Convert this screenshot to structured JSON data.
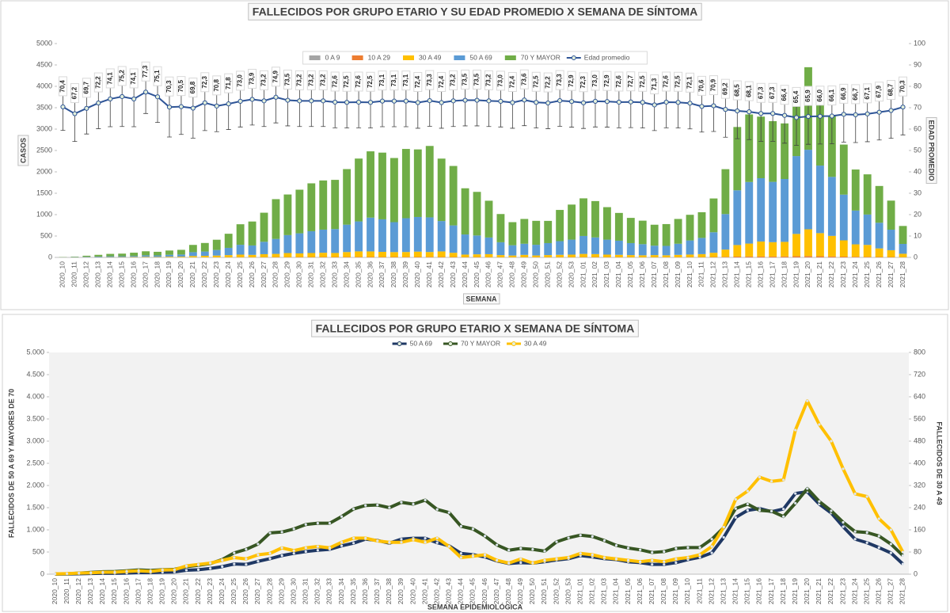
{
  "chart_data": [
    {
      "type": "bar",
      "stacked": true,
      "title": "FALLECIDOS POR GRUPO ETARIO Y SU EDAD PROMEDIO X SEMANA DE SÍNTOMA",
      "ylabel": "CASOS",
      "y2label": "EDAD PROMEDIO",
      "xlabel": "SEMANA",
      "categories": [
        "2020_10",
        "2020_11",
        "2020_12",
        "2020_13",
        "2020_14",
        "2020_15",
        "2020_16",
        "2020_17",
        "2020_18",
        "2020_19",
        "2020_20",
        "2020_21",
        "2020_22",
        "2020_23",
        "2020_24",
        "2020_25",
        "2020_26",
        "2020_27",
        "2020_28",
        "2020_29",
        "2020_30",
        "2020_31",
        "2020_32",
        "2020_33",
        "2020_34",
        "2020_35",
        "2020_36",
        "2020_37",
        "2020_38",
        "2020_39",
        "2020_40",
        "2020_41",
        "2020_42",
        "2020_43",
        "2020_44",
        "2020_45",
        "2020_46",
        "2020_47",
        "2020_48",
        "2020_49",
        "2020_50",
        "2020_51",
        "2020_52",
        "2020_53",
        "2021_01",
        "2021_02",
        "2021_03",
        "2021_04",
        "2021_05",
        "2021_06",
        "2021_07",
        "2021_08",
        "2021_09",
        "2021_10",
        "2021_11",
        "2021_12",
        "2021_13",
        "2021_14",
        "2021_15",
        "2021_16",
        "2021_17",
        "2021_18",
        "2021_19",
        "2021_20",
        "2021_21",
        "2021_22",
        "2021_23",
        "2021_24",
        "2021_25",
        "2021_26",
        "2021_27",
        "2021_28"
      ],
      "ylim": [
        0,
        5000
      ],
      "yticks": [
        0,
        500,
        1000,
        1500,
        2000,
        2500,
        3000,
        3500,
        4000,
        4500,
        5000
      ],
      "y2lim": [
        0,
        100
      ],
      "y2ticks": [
        0,
        10,
        20,
        30,
        40,
        50,
        60,
        70,
        80,
        90,
        100
      ],
      "series": [
        {
          "name": "0 A 9",
          "color": "#a5a5a5",
          "values": [
            0,
            0,
            0,
            0,
            0,
            0,
            0,
            0,
            0,
            0,
            0,
            0,
            0,
            0,
            0,
            1,
            0,
            0,
            1,
            0,
            1,
            0,
            1,
            0,
            1,
            1,
            0,
            1,
            0,
            1,
            0,
            1,
            1,
            0,
            0,
            1,
            0,
            0,
            0,
            0,
            1,
            0,
            0,
            0,
            0,
            1,
            0,
            0,
            0,
            0,
            0,
            0,
            0,
            1,
            0,
            0,
            1,
            1,
            1,
            0,
            1,
            1,
            1,
            2,
            1,
            1,
            0,
            1,
            0,
            0,
            0,
            0
          ]
        },
        {
          "name": "10 A 29",
          "color": "#ed7d31",
          "values": [
            0,
            0,
            0,
            0,
            0,
            1,
            0,
            1,
            1,
            1,
            1,
            2,
            2,
            3,
            3,
            4,
            4,
            5,
            6,
            6,
            7,
            7,
            8,
            8,
            9,
            10,
            10,
            9,
            9,
            10,
            10,
            10,
            9,
            8,
            6,
            6,
            5,
            4,
            4,
            4,
            4,
            4,
            5,
            5,
            6,
            6,
            5,
            5,
            4,
            4,
            4,
            4,
            4,
            5,
            6,
            8,
            12,
            18,
            22,
            22,
            20,
            22,
            28,
            30,
            26,
            22,
            18,
            14,
            12,
            10,
            8,
            5
          ]
        },
        {
          "name": "30 A 49",
          "color": "#ffc000",
          "values": [
            1,
            2,
            4,
            5,
            7,
            7,
            10,
            12,
            10,
            15,
            16,
            30,
            35,
            40,
            50,
            60,
            55,
            70,
            75,
            95,
            85,
            95,
            100,
            95,
            115,
            130,
            130,
            120,
            115,
            115,
            125,
            115,
            130,
            100,
            60,
            65,
            70,
            50,
            40,
            55,
            40,
            50,
            55,
            60,
            75,
            70,
            60,
            55,
            50,
            45,
            50,
            45,
            55,
            60,
            70,
            100,
            170,
            270,
            300,
            350,
            335,
            340,
            520,
            625,
            540,
            480,
            380,
            290,
            280,
            200,
            160,
            80
          ]
        },
        {
          "name": "50 A 69",
          "color": "#5b9bd5",
          "values": [
            2,
            5,
            10,
            15,
            20,
            20,
            25,
            35,
            35,
            45,
            50,
            90,
            100,
            130,
            170,
            230,
            220,
            290,
            350,
            420,
            470,
            510,
            540,
            560,
            640,
            700,
            790,
            760,
            700,
            790,
            810,
            810,
            710,
            640,
            470,
            440,
            390,
            300,
            240,
            260,
            250,
            280,
            320,
            350,
            420,
            390,
            350,
            330,
            280,
            260,
            220,
            220,
            260,
            330,
            380,
            480,
            830,
            1280,
            1440,
            1480,
            1410,
            1470,
            1820,
            1860,
            1580,
            1380,
            1070,
            790,
            710,
            600,
            480,
            230
          ]
        },
        {
          "name": "70 Y MAYOR",
          "color": "#70ad47",
          "values": [
            5,
            10,
            25,
            40,
            55,
            60,
            75,
            95,
            85,
            100,
            110,
            170,
            200,
            240,
            330,
            480,
            560,
            680,
            930,
            950,
            1020,
            1120,
            1150,
            1150,
            1300,
            1470,
            1550,
            1560,
            1500,
            1620,
            1580,
            1670,
            1460,
            1390,
            1080,
            1020,
            860,
            660,
            540,
            580,
            560,
            520,
            730,
            820,
            880,
            850,
            760,
            650,
            590,
            550,
            490,
            510,
            580,
            600,
            600,
            790,
            1050,
            1480,
            1580,
            1440,
            1420,
            1300,
            1600,
            1930,
            1640,
            1430,
            1170,
            960,
            940,
            860,
            680,
            420
          ]
        },
        {
          "name": "Edad promedio",
          "type": "line",
          "axis": "y2",
          "color": "#2f5597",
          "values": [
            70.4,
            67.2,
            69.7,
            72.2,
            74.1,
            75.2,
            74.1,
            77.3,
            75.1,
            70.3,
            70.5,
            69.8,
            72.3,
            70.8,
            71.8,
            73.0,
            73.9,
            73.2,
            74.9,
            73.5,
            73.2,
            73.2,
            73.2,
            72.6,
            72.5,
            72.6,
            72.5,
            73.1,
            73.1,
            73.1,
            72.4,
            73.3,
            72.4,
            73.2,
            73.5,
            73.5,
            73.2,
            73.0,
            72.4,
            73.6,
            72.5,
            72.2,
            73.3,
            72.9,
            72.3,
            73.0,
            72.9,
            72.6,
            72.7,
            72.5,
            71.3,
            72.6,
            72.5,
            72.1,
            70.6,
            70.9,
            69.2,
            68.5,
            68.1,
            67.3,
            67.3,
            66.4,
            65.4,
            65.9,
            66.0,
            66.1,
            66.9,
            66.7,
            67.1,
            67.9,
            68.7,
            70.3
          ],
          "value_labels": [
            "70,4",
            "67,2",
            "69,7",
            "72,2",
            "74,1",
            "75,2",
            "74,1",
            "77,3",
            "75,1",
            "70,3",
            "70,5",
            "69,8",
            "72,3",
            "70,8",
            "71,8",
            "73,0",
            "73,9",
            "73,2",
            "74,9",
            "73,5",
            "73,2",
            "73,2",
            "73,2",
            "72,6",
            "72,5",
            "72,6",
            "72,5",
            "73,1",
            "73,1",
            "73,1",
            "72,4",
            "73,3",
            "72,4",
            "73,2",
            "73,5",
            "73,5",
            "73,2",
            "73,0",
            "72,4",
            "73,6",
            "72,5",
            "72,2",
            "73,3",
            "72,9",
            "72,3",
            "73,0",
            "72,9",
            "72,6",
            "72,7",
            "72,5",
            "71,3",
            "72,6",
            "72,5",
            "72,1",
            "70,6",
            "70,9",
            "69,2",
            "68,5",
            "68,1",
            "67,3",
            "67,3",
            "66,4",
            "65,4",
            "65,9",
            "66,0",
            "66,1",
            "66,9",
            "66,7",
            "67,1",
            "67,9",
            "68,7",
            "70,3"
          ],
          "errors": [
            11,
            13,
            12,
            12,
            13,
            14,
            13,
            10,
            12,
            14,
            13,
            14,
            13,
            12,
            12,
            12,
            12,
            12,
            12,
            12,
            12,
            12,
            12,
            12,
            12,
            12,
            12,
            12,
            12,
            12,
            12,
            12,
            12,
            12,
            12,
            12,
            12,
            12,
            12,
            12,
            12,
            12,
            12,
            12,
            12,
            12,
            12,
            12,
            12,
            12,
            12,
            12,
            12,
            12,
            12,
            12,
            13,
            13,
            13,
            13,
            13,
            13,
            13,
            13,
            13,
            13,
            13,
            13,
            13,
            13,
            13,
            13
          ]
        }
      ]
    },
    {
      "type": "line",
      "title": "FALLECIDOS POR GRUPO ETARIO X SEMANA DE SÍNTOMA",
      "ylabel": "FALLECIDOS DE 50 A 69 Y MAYORES DE 70",
      "y2label": "FALLECIDOS DE 30 A 49",
      "xlabel": "SEMANA EPIDEMIOLÓGICA",
      "categories": [
        "2020_10",
        "2020_11",
        "2020_12",
        "2020_13",
        "2020_14",
        "2020_15",
        "2020_16",
        "2020_17",
        "2020_18",
        "2020_19",
        "2020_20",
        "2020_21",
        "2020_22",
        "2020_23",
        "2020_24",
        "2020_25",
        "2020_26",
        "2020_27",
        "2020_28",
        "2020_29",
        "2020_30",
        "2020_31",
        "2020_32",
        "2020_33",
        "2020_34",
        "2020_35",
        "2020_36",
        "2020_37",
        "2020_38",
        "2020_39",
        "2020_40",
        "2020_41",
        "2020_42",
        "2020_43",
        "2020_44",
        "2020_45",
        "2020_46",
        "2020_47",
        "2020_48",
        "2020_49",
        "2020_50",
        "2020_51",
        "2020_52",
        "2020_53",
        "2021_01",
        "2021_02",
        "2021_03",
        "2021_04",
        "2021_05",
        "2021_06",
        "2021_07",
        "2021_08",
        "2021_09",
        "2021_10",
        "2021_11",
        "2021_12",
        "2021_13",
        "2021_14",
        "2021_15",
        "2021_16",
        "2021_17",
        "2021_18",
        "2021_19",
        "2021_20",
        "2021_21",
        "2021_22",
        "2021_23",
        "2021_24",
        "2021_25",
        "2021_26",
        "2021_27",
        "2021_28"
      ],
      "ylim": [
        0,
        5000
      ],
      "yticks": [
        0,
        500,
        {
          "value": 1000,
          "label": "1.000"
        },
        {
          "value": 1500,
          "label": "1.500"
        },
        {
          "value": 2000,
          "label": "2.000"
        },
        {
          "value": 2500,
          "label": "2.500"
        },
        {
          "value": 3000,
          "label": "3.000"
        },
        {
          "value": 3500,
          "label": "3.500"
        },
        {
          "value": 4000,
          "label": "4.000"
        },
        {
          "value": 4500,
          "label": "4.500"
        },
        {
          "value": 5000,
          "label": "5.000"
        }
      ],
      "y2lim": [
        0,
        800
      ],
      "y2ticks": [
        0,
        80,
        160,
        240,
        320,
        400,
        480,
        560,
        640,
        720,
        800
      ],
      "series": [
        {
          "name": "50 A 69",
          "color": "#1f3864",
          "values": [
            2,
            5,
            10,
            15,
            20,
            20,
            25,
            35,
            35,
            45,
            50,
            90,
            100,
            130,
            170,
            230,
            220,
            290,
            350,
            420,
            470,
            510,
            540,
            560,
            640,
            700,
            790,
            760,
            700,
            790,
            810,
            810,
            710,
            640,
            470,
            440,
            390,
            300,
            240,
            260,
            250,
            280,
            320,
            350,
            420,
            390,
            350,
            330,
            280,
            260,
            220,
            220,
            260,
            330,
            380,
            480,
            830,
            1280,
            1440,
            1480,
            1410,
            1470,
            1820,
            1860,
            1580,
            1380,
            1070,
            790,
            710,
            600,
            480,
            230
          ]
        },
        {
          "name": "70 Y MAYOR",
          "color": "#375623",
          "values": [
            5,
            10,
            25,
            40,
            55,
            60,
            75,
            95,
            85,
            100,
            110,
            170,
            200,
            240,
            330,
            480,
            560,
            680,
            930,
            950,
            1020,
            1120,
            1150,
            1150,
            1300,
            1470,
            1550,
            1560,
            1500,
            1620,
            1580,
            1670,
            1460,
            1390,
            1080,
            1020,
            860,
            660,
            540,
            580,
            560,
            520,
            730,
            820,
            880,
            850,
            760,
            650,
            590,
            550,
            490,
            510,
            580,
            600,
            600,
            790,
            1050,
            1480,
            1580,
            1440,
            1420,
            1300,
            1600,
            1930,
            1640,
            1430,
            1170,
            960,
            940,
            860,
            680,
            420
          ]
        },
        {
          "name": "30 A 49",
          "color": "#ffc000",
          "axis": "y2",
          "values": [
            1,
            2,
            4,
            5,
            7,
            7,
            10,
            12,
            10,
            15,
            16,
            30,
            35,
            40,
            50,
            60,
            55,
            70,
            75,
            95,
            85,
            95,
            100,
            95,
            115,
            130,
            130,
            120,
            115,
            115,
            125,
            115,
            130,
            100,
            60,
            65,
            70,
            50,
            40,
            55,
            40,
            50,
            55,
            60,
            75,
            70,
            60,
            55,
            50,
            45,
            50,
            45,
            55,
            60,
            70,
            100,
            170,
            270,
            300,
            350,
            335,
            340,
            520,
            625,
            540,
            480,
            380,
            290,
            280,
            200,
            160,
            80
          ]
        }
      ]
    }
  ]
}
